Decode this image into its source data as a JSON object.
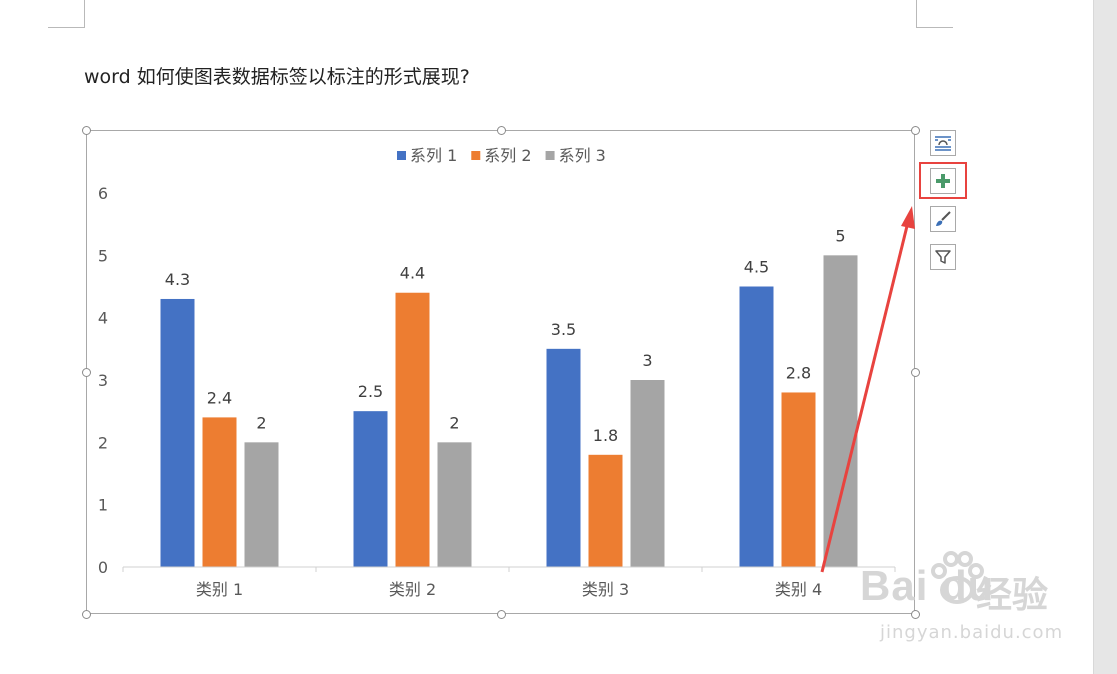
{
  "document": {
    "paragraph": "word 如何使图表数据标签以标注的形式展现?"
  },
  "chart_data": {
    "type": "bar",
    "categories": [
      "类别 1",
      "类别 2",
      "类别 3",
      "类别 4"
    ],
    "series": [
      {
        "name": "系列 1",
        "values": [
          4.3,
          2.5,
          3.5,
          4.5
        ],
        "color": "#4472c4"
      },
      {
        "name": "系列 2",
        "values": [
          2.4,
          4.4,
          1.8,
          2.8
        ],
        "color": "#ed7d31"
      },
      {
        "name": "系列 3",
        "values": [
          2,
          2,
          3,
          5
        ],
        "color": "#a5a5a5"
      }
    ],
    "data_labels": [
      [
        "4.3",
        "2.5",
        "3.5",
        "4.5"
      ],
      [
        "2.4",
        "4.4",
        "1.8",
        "2.8"
      ],
      [
        "2",
        "2",
        "3",
        "5"
      ]
    ],
    "y_ticks": [
      "0",
      "1",
      "2",
      "3",
      "4",
      "5",
      "6"
    ],
    "ylim": [
      0,
      6
    ],
    "grid": false,
    "legend_position": "top"
  },
  "chart_tools": {
    "layout_icon": "layout-options-icon",
    "elements_icon": "plus-icon",
    "styles_icon": "paintbrush-icon",
    "filter_icon": "funnel-icon",
    "highlight_color": "#e8433f",
    "arrow_color": "#e8433f"
  },
  "watermark": {
    "brand": "Bai du",
    "brand_cn": "经验",
    "url": "jingyan.baidu.com"
  }
}
